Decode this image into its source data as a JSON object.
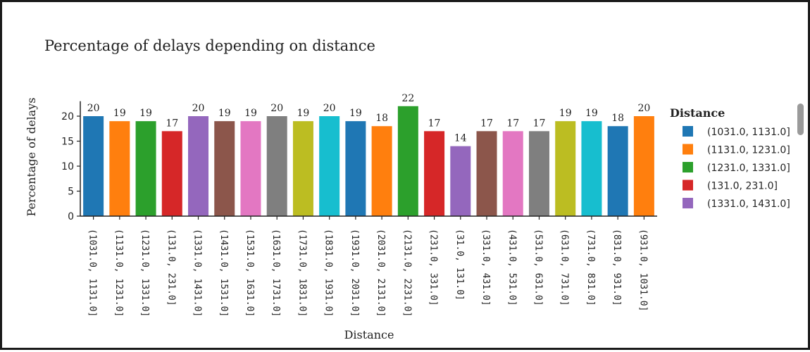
{
  "chart_data": {
    "type": "bar",
    "title": "Percentage of delays depending on distance",
    "xlabel": "Distance",
    "ylabel": "Percentage of delays",
    "ylim": [
      0,
      23
    ],
    "yticks": [
      0,
      5,
      10,
      15,
      20
    ],
    "grid": false,
    "categories": [
      "(1031.0, 1131.0]",
      "(1131.0, 1231.0]",
      "(1231.0, 1331.0]",
      "(131.0, 231.0]",
      "(1331.0, 1431.0]",
      "(1431.0, 1531.0]",
      "(1531.0, 1631.0]",
      "(1631.0, 1731.0]",
      "(1731.0, 1831.0]",
      "(1831.0, 1931.0]",
      "(1931.0, 2031.0]",
      "(2031.0, 2131.0]",
      "(2131.0, 2231.0]",
      "(231.0, 331.0]",
      "(31.0, 131.0]",
      "(331.0, 431.0]",
      "(431.0, 531.0]",
      "(531.0, 631.0]",
      "(631.0, 731.0]",
      "(731.0, 831.0]",
      "(831.0, 931.0]",
      "(931.0, 1031.0]"
    ],
    "values": [
      20,
      19,
      19,
      17,
      20,
      19,
      19,
      20,
      19,
      20,
      19,
      18,
      22,
      17,
      14,
      17,
      17,
      17,
      19,
      19,
      18,
      20
    ],
    "colors": [
      "#1f77b4",
      "#ff7f0e",
      "#2ca02c",
      "#d62728",
      "#9467bd",
      "#8c564b",
      "#e377c2",
      "#7f7f7f",
      "#bcbd22",
      "#17becf",
      "#1f77b4",
      "#ff7f0e",
      "#2ca02c",
      "#d62728",
      "#9467bd",
      "#8c564b",
      "#e377c2",
      "#7f7f7f",
      "#bcbd22",
      "#17becf",
      "#1f77b4",
      "#ff7f0e"
    ],
    "legend": {
      "title": "Distance",
      "placement": "right",
      "entries": [
        {
          "label": "(1031.0, 1131.0]",
          "color": "#1f77b4"
        },
        {
          "label": "(1131.0, 1231.0]",
          "color": "#ff7f0e"
        },
        {
          "label": "(1231.0, 1331.0]",
          "color": "#2ca02c"
        },
        {
          "label": "(131.0, 231.0]",
          "color": "#d62728"
        },
        {
          "label": "(1331.0, 1431.0]",
          "color": "#9467bd"
        }
      ]
    }
  }
}
